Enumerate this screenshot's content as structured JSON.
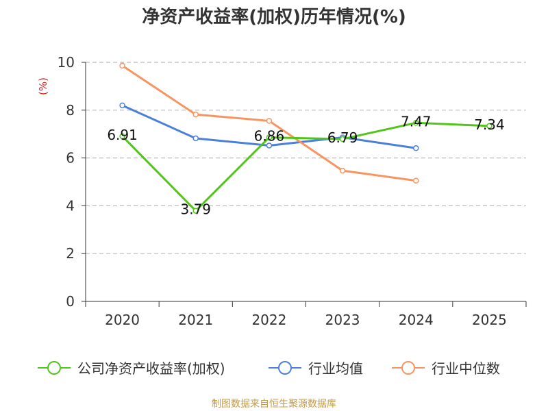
{
  "chart_data": {
    "type": "line",
    "title": "净资产收益率(加权)历年情况(%)",
    "ylabel": "(%)",
    "xlabel": "",
    "categories": [
      "2020",
      "2021",
      "2022",
      "2023",
      "2024",
      "2025"
    ],
    "ylim": [
      0,
      10
    ],
    "yticks": [
      "0",
      "2",
      "4",
      "6",
      "8",
      "10"
    ],
    "grid": true,
    "legend_position": "bottom",
    "series": [
      {
        "name": "公司净资产收益率(加权)",
        "color": "#52c41a",
        "values": [
          6.91,
          3.79,
          6.86,
          6.79,
          7.47,
          7.34
        ],
        "labels": [
          "6.91",
          "3.79",
          "6.86",
          "6.79",
          "7.47",
          "7.34"
        ]
      },
      {
        "name": "行业均值",
        "color": "#4a7fdc",
        "values": [
          8.2,
          6.82,
          6.52,
          6.86,
          6.41,
          null
        ]
      },
      {
        "name": "行业中位数",
        "color": "#f79560",
        "values": [
          9.86,
          7.82,
          7.55,
          5.47,
          5.05,
          null
        ]
      }
    ]
  },
  "source": "制图数据来自恒生聚源数据库",
  "colors": {
    "ylabel": "#e02020",
    "source": "#c49a45",
    "grid": "#bbbbbb",
    "axis": "#333333"
  }
}
